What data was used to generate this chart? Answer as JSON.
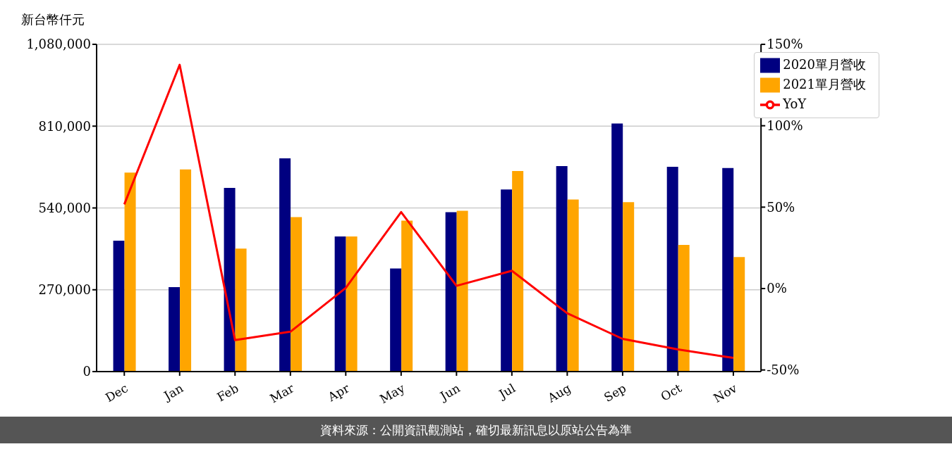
{
  "chart_data": {
    "type": "bar",
    "ylabel": "新台幣仟元",
    "categories": [
      "Dec",
      "Jan",
      "Feb",
      "Mar",
      "Apr",
      "May",
      "Jun",
      "Jul",
      "Aug",
      "Sep",
      "Oct",
      "Nov"
    ],
    "series": [
      {
        "name": "2020單月營收",
        "color": "#000080",
        "values": [
          432000,
          279000,
          606000,
          704000,
          446000,
          340000,
          526000,
          601000,
          678000,
          819000,
          676000,
          672000
        ]
      },
      {
        "name": "2021單月營收",
        "color": "#ffa500",
        "values": [
          657000,
          667000,
          406000,
          510000,
          446000,
          498000,
          531000,
          662000,
          568000,
          559000,
          418000,
          378000
        ]
      },
      {
        "name": "YoY",
        "type": "line",
        "axis": "y2",
        "color": "#ff0000",
        "marker": "none",
        "values": [
          51.7,
          137.4,
          -31.7,
          -26.5,
          0.4,
          47,
          1.7,
          10.9,
          -15.2,
          -30.9,
          -37.4,
          -42.6
        ]
      }
    ],
    "ylim": [
      0,
      1080000
    ],
    "yticks": [
      0,
      {
        "value": 270000,
        "label": "270,000"
      },
      {
        "value": 540000,
        "label": "540,000"
      },
      {
        "value": 810000,
        "label": "810,000"
      },
      {
        "value": 1080000,
        "label": "1,080,000"
      }
    ],
    "y2lim": [
      -51,
      150
    ],
    "y2ticks": [
      {
        "value": -50,
        "label": "-50%"
      },
      {
        "value": 0,
        "label": "0%"
      },
      {
        "value": 50,
        "label": "50%"
      },
      {
        "value": 100,
        "label": "100%"
      },
      {
        "value": 150,
        "label": "150%"
      }
    ],
    "grid": "y",
    "legend": "top right",
    "annotations": [
      "資料來源：公開資訊觀測站，確切最新訊息以原站公告為準"
    ]
  }
}
